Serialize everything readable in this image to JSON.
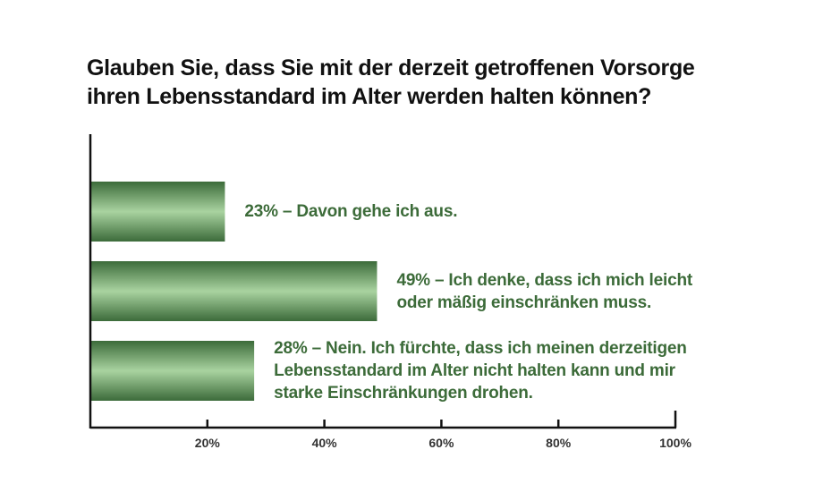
{
  "chart_data": {
    "type": "bar",
    "orientation": "horizontal",
    "title_lines": [
      "Glauben Sie, dass Sie mit der derzeit getroffenen Vorsorge",
      "ihren Lebensstandard im Alter werden halten können?"
    ],
    "categories": [
      [
        "23% – Davon gehe ich aus."
      ],
      [
        "49% – Ich denke, dass ich mich leicht",
        "oder mäßig einschränken muss."
      ],
      [
        "28% – Nein. Ich fürchte, dass ich meinen derzeitigen",
        "Lebensstandard im Alter nicht halten kann und mir",
        "starke Einschränkungen drohen."
      ]
    ],
    "values": [
      23,
      49,
      28
    ],
    "xlim": [
      0,
      100
    ],
    "x_ticks": [
      20,
      40,
      60,
      80,
      100
    ],
    "x_tick_labels": [
      "20%",
      "40%",
      "60%",
      "80%",
      "100%"
    ],
    "grid": false,
    "legend": "none"
  },
  "colors": {
    "bar_dark": "#3c6b3a",
    "bar_light": "#a9d3a0",
    "label_text": "#3c6b39",
    "axis": "#111111",
    "title_text": "#111111"
  }
}
